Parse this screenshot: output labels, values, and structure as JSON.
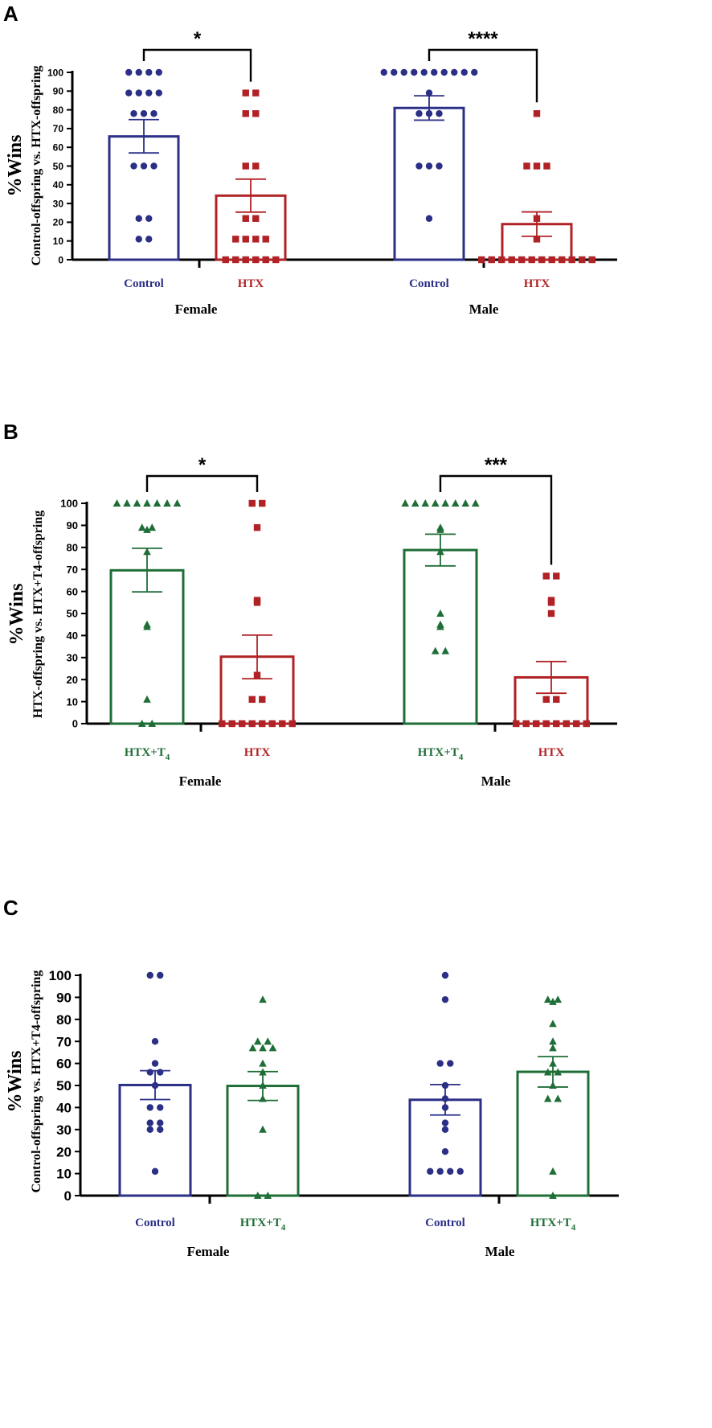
{
  "colors": {
    "control": "#2b2f86",
    "htx": "#b02225",
    "htxt4": "#1f6e37",
    "axis": "#000000"
  },
  "chart_data": [
    {
      "type": "bar",
      "panel": "A",
      "ylabel_main": "%Wins",
      "ylabel_sub": "Control-offspring vs. HTX-offspring",
      "ylim": [
        0,
        100
      ],
      "yticks": [
        0,
        10,
        20,
        30,
        40,
        50,
        60,
        70,
        80,
        90,
        100
      ],
      "groups": [
        "Female",
        "Male"
      ],
      "bars": [
        {
          "group": "Female",
          "label": "Control",
          "series": "control",
          "marker": "circle",
          "mean": 65.8,
          "sem_low": 57.0,
          "sem_high": 74.8,
          "points": [
            100,
            100,
            100,
            100,
            89,
            89,
            89,
            89,
            78,
            78,
            78,
            50,
            50,
            50,
            22,
            22,
            11,
            11
          ]
        },
        {
          "group": "Female",
          "label": "HTX",
          "series": "htx",
          "marker": "square",
          "mean": 34.2,
          "sem_low": 25.4,
          "sem_high": 43.0,
          "points": [
            89,
            89,
            78,
            78,
            50,
            50,
            22,
            22,
            11,
            11,
            11,
            11,
            0,
            0,
            0,
            0,
            0,
            0
          ]
        },
        {
          "group": "Male",
          "label": "Control",
          "series": "control",
          "marker": "circle",
          "mean": 81.0,
          "sem_low": 74.5,
          "sem_high": 87.5,
          "points": [
            100,
            100,
            100,
            100,
            100,
            100,
            100,
            100,
            100,
            100,
            89,
            78,
            78,
            78,
            50,
            50,
            50,
            22
          ]
        },
        {
          "group": "Male",
          "label": "HTX",
          "series": "htx",
          "marker": "square",
          "mean": 19.0,
          "sem_low": 12.5,
          "sem_high": 25.5,
          "points": [
            78,
            50,
            50,
            50,
            22,
            11,
            0,
            0,
            0,
            0,
            0,
            0,
            0,
            0,
            0,
            0,
            0,
            0
          ]
        }
      ],
      "significance": [
        {
          "group": "Female",
          "label": "*"
        },
        {
          "group": "Male",
          "label": "****"
        }
      ]
    },
    {
      "type": "bar",
      "panel": "B",
      "ylabel_main": "%Wins",
      "ylabel_sub": "HTX-offspring vs. HTX+T4-offspring",
      "ylim": [
        0,
        100
      ],
      "yticks": [
        0,
        10,
        20,
        30,
        40,
        50,
        60,
        70,
        80,
        90,
        100
      ],
      "groups": [
        "Female",
        "Male"
      ],
      "bars": [
        {
          "group": "Female",
          "label": "HTX+T",
          "label_sub": "4",
          "series": "htxt4",
          "marker": "triangle",
          "mean": 69.6,
          "sem_low": 59.8,
          "sem_high": 79.6,
          "points": [
            100,
            100,
            100,
            100,
            100,
            100,
            100,
            89,
            89,
            88,
            78,
            45,
            44,
            11,
            0,
            0
          ]
        },
        {
          "group": "Female",
          "label": "HTX",
          "label_sub": "",
          "series": "htx",
          "marker": "square",
          "mean": 30.4,
          "sem_low": 20.4,
          "sem_high": 40.2,
          "points": [
            100,
            100,
            89,
            56,
            55,
            22,
            11,
            11,
            0,
            0,
            0,
            0,
            0,
            0,
            0,
            0
          ]
        },
        {
          "group": "Male",
          "label": "HTX+T",
          "label_sub": "4",
          "series": "htxt4",
          "marker": "triangle",
          "mean": 78.8,
          "sem_low": 71.6,
          "sem_high": 86.0,
          "points": [
            100,
            100,
            100,
            100,
            100,
            100,
            100,
            100,
            89,
            88,
            78,
            50,
            45,
            44,
            33,
            33
          ]
        },
        {
          "group": "Male",
          "label": "HTX",
          "label_sub": "",
          "series": "htx",
          "marker": "square",
          "mean": 21.0,
          "sem_low": 13.8,
          "sem_high": 28.2,
          "points": [
            67,
            67,
            56,
            55,
            50,
            11,
            11,
            0,
            0,
            0,
            0,
            0,
            0,
            0,
            0
          ]
        }
      ],
      "significance": [
        {
          "group": "Female",
          "label": "*"
        },
        {
          "group": "Male",
          "label": "***"
        }
      ]
    },
    {
      "type": "bar",
      "panel": "C",
      "ylabel_main": "%Wins",
      "ylabel_sub": "Control-offspring vs. HTX+T4-offspring",
      "ylim": [
        0,
        100
      ],
      "yticks": [
        0,
        10,
        20,
        30,
        40,
        50,
        60,
        70,
        80,
        90,
        100
      ],
      "groups": [
        "Female",
        "Male"
      ],
      "bars": [
        {
          "group": "Female",
          "label": "Control",
          "label_sub": "",
          "series": "control",
          "marker": "circle",
          "mean": 50.2,
          "sem_low": 43.6,
          "sem_high": 56.7,
          "points": [
            100,
            100,
            70,
            60,
            56,
            56,
            50,
            40,
            40,
            33,
            33,
            30,
            30,
            11
          ]
        },
        {
          "group": "Female",
          "label": "HTX+T",
          "label_sub": "4",
          "series": "htxt4",
          "marker": "triangle",
          "mean": 49.8,
          "sem_low": 43.2,
          "sem_high": 56.3,
          "points": [
            89,
            70,
            70,
            67,
            67,
            67,
            60,
            56,
            50,
            44,
            30,
            0,
            0
          ]
        },
        {
          "group": "Male",
          "label": "Control",
          "label_sub": "",
          "series": "control",
          "marker": "circle",
          "mean": 43.5,
          "sem_low": 36.6,
          "sem_high": 50.4,
          "points": [
            100,
            89,
            60,
            60,
            50,
            44,
            40,
            33,
            30,
            20,
            11,
            11,
            11,
            11
          ]
        },
        {
          "group": "Male",
          "label": "HTX+T",
          "label_sub": "4",
          "series": "htxt4",
          "marker": "triangle",
          "mean": 56.2,
          "sem_low": 49.3,
          "sem_high": 63.1,
          "points": [
            89,
            89,
            88,
            78,
            70,
            67,
            60,
            56,
            56,
            50,
            44,
            44,
            11,
            0
          ]
        }
      ],
      "significance": []
    }
  ]
}
